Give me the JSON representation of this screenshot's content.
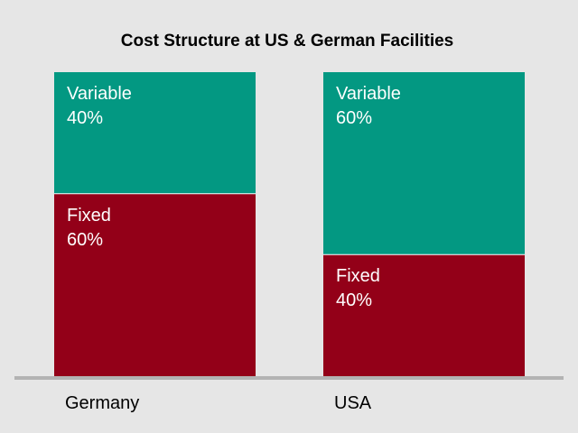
{
  "chart_data": {
    "type": "bar",
    "stacked": true,
    "title": "Cost Structure at US & German Facilities",
    "categories": [
      "Germany",
      "USA"
    ],
    "series": [
      {
        "name": "Fixed",
        "values": [
          60,
          40
        ],
        "color": "#930018"
      },
      {
        "name": "Variable",
        "values": [
          40,
          60
        ],
        "color": "#039882"
      }
    ],
    "value_suffix": "%",
    "ylim": [
      0,
      100
    ],
    "grid": false,
    "legend": "none",
    "axis_color": "#b3b3b3"
  }
}
